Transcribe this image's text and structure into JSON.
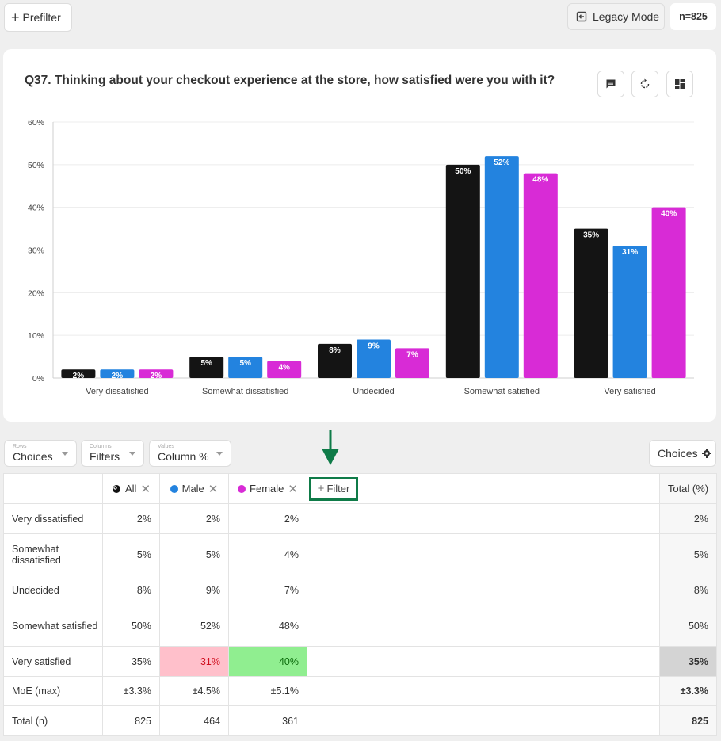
{
  "topbar": {
    "prefilter_label": "Prefilter",
    "legacy_label": "Legacy Mode",
    "n_label": "n=825"
  },
  "question": "Q37. Thinking about your checkout experience at the store, how satisfied were you with it?",
  "chart_data": {
    "type": "bar",
    "categories": [
      "Very dissatisfied",
      "Somewhat dissatisfied",
      "Undecided",
      "Somewhat satisfied",
      "Very satisfied"
    ],
    "series": [
      {
        "name": "All",
        "color": "#141414",
        "values": [
          2,
          5,
          8,
          50,
          35
        ]
      },
      {
        "name": "Male",
        "color": "#2383df",
        "values": [
          2,
          5,
          9,
          52,
          31
        ]
      },
      {
        "name": "Female",
        "color": "#d82bd6",
        "values": [
          2,
          4,
          7,
          48,
          40
        ]
      }
    ],
    "yticks": [
      "60%",
      "50%",
      "40%",
      "30%",
      "20%",
      "10%",
      "0%"
    ],
    "ylim": [
      0,
      60
    ],
    "grid": true
  },
  "controls": {
    "rows_small": "Rows",
    "rows_value": "Choices",
    "columns_small": "Columns",
    "columns_value": "Filters",
    "values_small": "Values",
    "values_value": "Column %",
    "choices_button": "Choices"
  },
  "table": {
    "col_all": "All",
    "col_male": "Male",
    "col_female": "Female",
    "add_filter": "Filter",
    "col_total": "Total (%)",
    "rows": [
      {
        "label": "Very dissatisfied",
        "all": "2%",
        "male": "2%",
        "female": "2%",
        "total": "2%"
      },
      {
        "label": "Somewhat dissatisfied",
        "all": "5%",
        "male": "5%",
        "female": "4%",
        "total": "5%"
      },
      {
        "label": "Undecided",
        "all": "8%",
        "male": "9%",
        "female": "7%",
        "total": "8%"
      },
      {
        "label": "Somewhat satisfied",
        "all": "50%",
        "male": "52%",
        "female": "48%",
        "total": "50%"
      },
      {
        "label": "Very satisfied",
        "all": "35%",
        "male": "31%",
        "female": "40%",
        "total": "35%"
      },
      {
        "label": "MoE (max)",
        "all": "±3.3%",
        "male": "±4.5%",
        "female": "±5.1%",
        "total": "±3.3%"
      },
      {
        "label": "Total (n)",
        "all": "825",
        "male": "464",
        "female": "361",
        "total": "825"
      }
    ]
  }
}
